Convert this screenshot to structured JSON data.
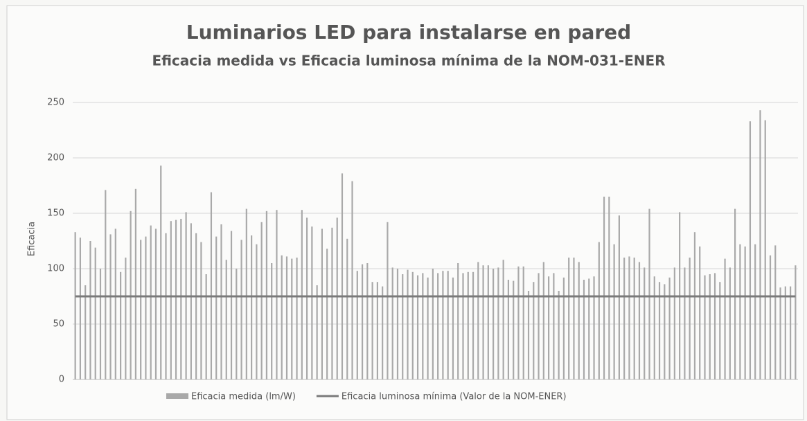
{
  "chart_data": {
    "type": "bar",
    "title": "Luminarios LED para instalarse en pared",
    "subtitle": "Eficacia medida vs Eficacia luminosa mínima de la NOM-031-ENER",
    "y_label": "Eficacia",
    "ylim": [
      0,
      250
    ],
    "yticks": [
      0,
      50,
      100,
      150,
      200,
      250
    ],
    "grid": true,
    "series": [
      {
        "name": "Eficacia medida (lm/W)",
        "type": "bar",
        "color": "#a9a9a9",
        "values": [
          133,
          128,
          85,
          125,
          119,
          100,
          171,
          131,
          136,
          97,
          110,
          152,
          172,
          126,
          129,
          139,
          136,
          193,
          132,
          143,
          144,
          145,
          151,
          141,
          132,
          124,
          95,
          169,
          129,
          140,
          108,
          134,
          100,
          126,
          154,
          130,
          122,
          142,
          152,
          105,
          153,
          112,
          111,
          109,
          110,
          153,
          146,
          138,
          85,
          136,
          118,
          137,
          146,
          186,
          127,
          179,
          98,
          104,
          105,
          88,
          88,
          84,
          142,
          101,
          100,
          95,
          99,
          97,
          94,
          96,
          92,
          100,
          96,
          98,
          98,
          92,
          105,
          96,
          97,
          97,
          106,
          103,
          103,
          100,
          101,
          108,
          90,
          89,
          102,
          102,
          80,
          88,
          96,
          106,
          93,
          96,
          80,
          92,
          110,
          110,
          106,
          90,
          91,
          93,
          124,
          165,
          165,
          122,
          148,
          110,
          111,
          110,
          106,
          101,
          154,
          93,
          88,
          86,
          92,
          101,
          151,
          101,
          110,
          133,
          120,
          94,
          95,
          96,
          88,
          109,
          101,
          154,
          122,
          120,
          233,
          122,
          243,
          234,
          112,
          121,
          83,
          84,
          84,
          103
        ]
      },
      {
        "name": "Eficacia luminosa mínima (Valor de la NOM-ENER)",
        "type": "line",
        "color": "#7a7a7a",
        "values": [
          75,
          75,
          75,
          75,
          75,
          75,
          75,
          75,
          75,
          75,
          75,
          75,
          75,
          75,
          75,
          75,
          75,
          75,
          75,
          75,
          75,
          75,
          75,
          75,
          75,
          75,
          75,
          75,
          75,
          75,
          75,
          75,
          75,
          75,
          75,
          75,
          75,
          75,
          75,
          75,
          75,
          75,
          75,
          75,
          75,
          75,
          75,
          75,
          75,
          75,
          75,
          75,
          75,
          75,
          75,
          75,
          75,
          75,
          75,
          75,
          75,
          75,
          75,
          75,
          75,
          75,
          75,
          75,
          75,
          75,
          75,
          75,
          75,
          75,
          75,
          75,
          75,
          75,
          75,
          75,
          75,
          75,
          75,
          75,
          75,
          75,
          75,
          75,
          75,
          75,
          75,
          75,
          75,
          75,
          75,
          75,
          75,
          75,
          75,
          75,
          75,
          75,
          75,
          75,
          75,
          75,
          75,
          75,
          75,
          75,
          75,
          75,
          75,
          75,
          75,
          75,
          75,
          75,
          75,
          75,
          75,
          75,
          75,
          75,
          75,
          75,
          75,
          75,
          75,
          75,
          75,
          75,
          75,
          75,
          75,
          75,
          75,
          75,
          75,
          75,
          75,
          75,
          75,
          75
        ]
      }
    ]
  }
}
